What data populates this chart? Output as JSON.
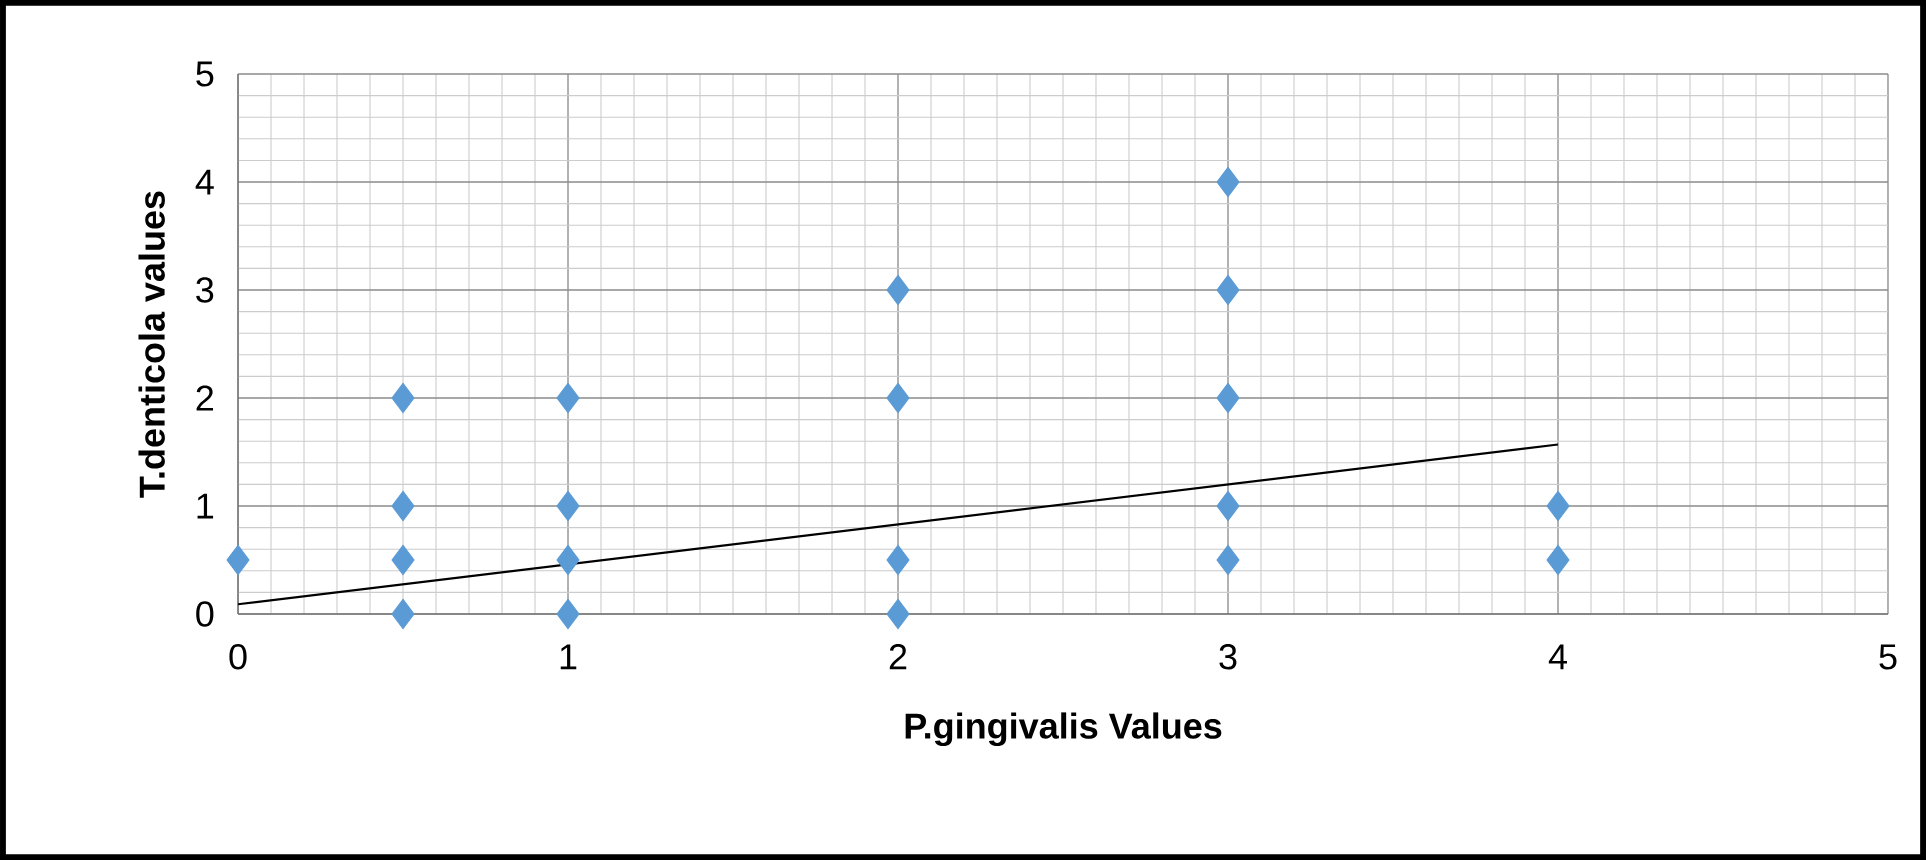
{
  "chart_data": {
    "type": "scatter",
    "xlabel": "P.gingivalis Values",
    "ylabel": "T.denticola values",
    "xlim": [
      0,
      5
    ],
    "ylim": [
      0,
      5
    ],
    "xticks": [
      0,
      1,
      2,
      3,
      4,
      5
    ],
    "yticks": [
      0,
      1,
      2,
      3,
      4,
      5
    ],
    "grid": true,
    "series": [
      {
        "marker": "diamond",
        "color": "#5b9bd5",
        "x": [
          0,
          0.5,
          0.5,
          0.5,
          0.5,
          1,
          1,
          1,
          1,
          2,
          2,
          2,
          2,
          3,
          3,
          3,
          3,
          3,
          4,
          4
        ],
        "values": [
          0.5,
          2,
          1,
          0.5,
          0,
          2,
          1,
          0.5,
          0,
          3,
          2,
          0.5,
          0,
          4,
          3,
          2,
          1,
          0.5,
          1,
          0.5
        ]
      },
      {
        "type": "line",
        "marker": "none",
        "color": "#000000",
        "x": [
          0,
          4
        ],
        "values": [
          0.09,
          1.57
        ]
      }
    ]
  }
}
